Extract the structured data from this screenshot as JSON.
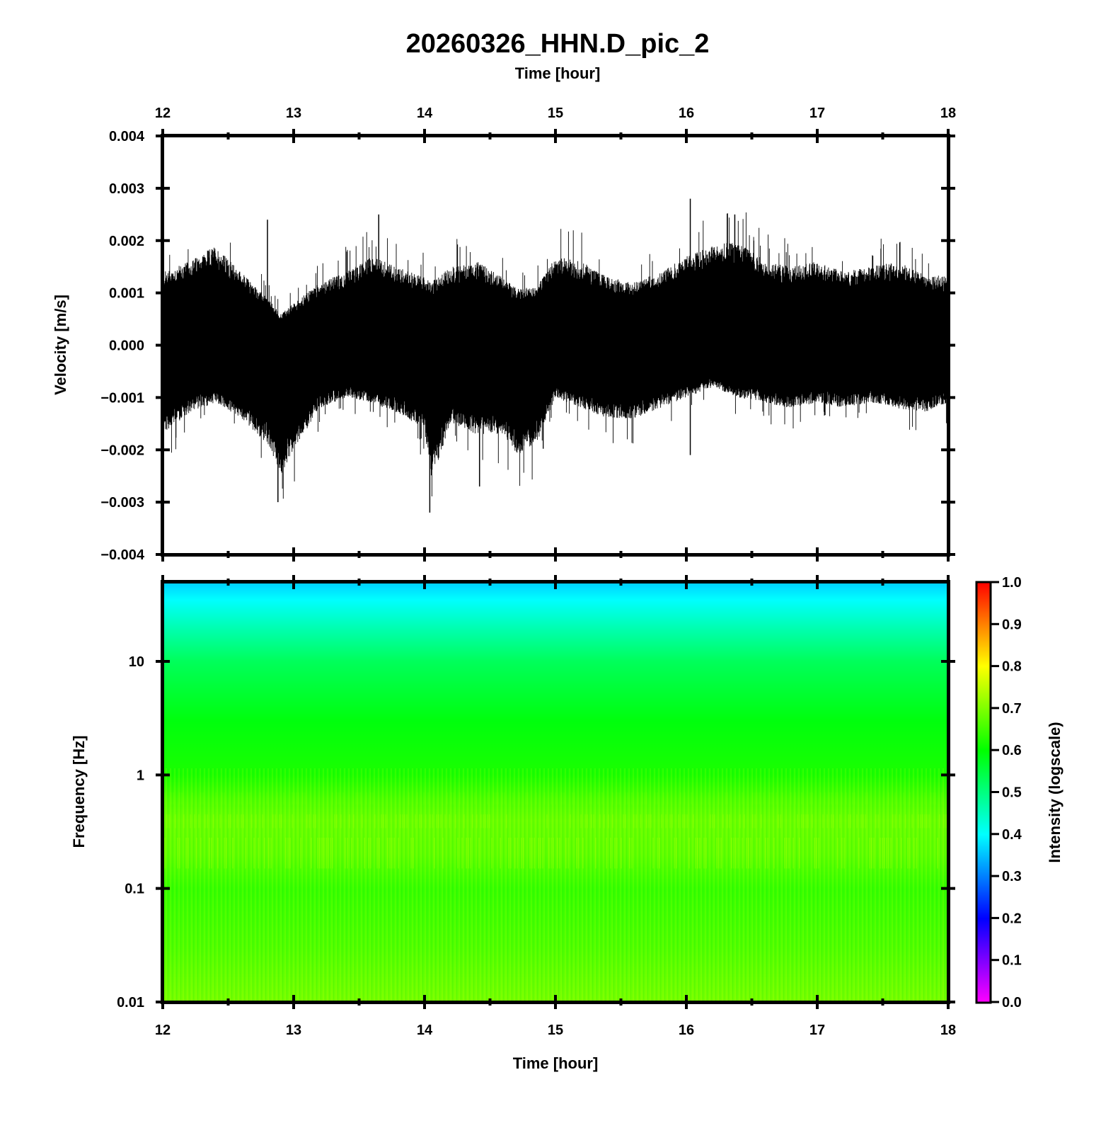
{
  "title": "20260326_HHN.D_pic_2",
  "colors": {
    "waveform": "#000000",
    "colormap": [
      "#ff00ff",
      "#8000ff",
      "#0000ff",
      "#0080ff",
      "#00ffff",
      "#00ff80",
      "#00ff00",
      "#80ff00",
      "#ffff00",
      "#ff8000",
      "#ff0000"
    ]
  },
  "chart_data": [
    {
      "type": "line",
      "name": "waveform",
      "xlabel_top": "Time [hour]",
      "ylabel": "Velocity [m/s]",
      "xlim": [
        12,
        18
      ],
      "ylim": [
        -0.004,
        0.004
      ],
      "x_ticks": [
        "12",
        "13",
        "14",
        "15",
        "16",
        "17",
        "18"
      ],
      "y_ticks": [
        "0.004",
        "0.003",
        "0.002",
        "0.001",
        "0.000",
        "−0.001",
        "−0.002",
        "−0.003",
        "−0.004"
      ],
      "y_tick_values": [
        0.004,
        0.003,
        0.002,
        0.001,
        0.0,
        -0.001,
        -0.002,
        -0.003,
        -0.004
      ],
      "envelope": {
        "x": [
          12.0,
          12.2,
          12.4,
          12.6,
          12.8,
          12.9,
          13.0,
          13.2,
          13.4,
          13.6,
          13.8,
          14.0,
          14.05,
          14.2,
          14.4,
          14.6,
          14.7,
          14.85,
          15.0,
          15.2,
          15.4,
          15.6,
          15.8,
          16.0,
          16.2,
          16.4,
          16.6,
          16.8,
          17.0,
          17.2,
          17.4,
          17.6,
          17.8,
          18.0
        ],
        "upper": [
          0.0014,
          0.0016,
          0.0019,
          0.0014,
          0.0009,
          0.0006,
          0.0008,
          0.0012,
          0.0014,
          0.0017,
          0.0015,
          0.0013,
          0.0012,
          0.0015,
          0.0016,
          0.0013,
          0.0011,
          0.0011,
          0.0017,
          0.0016,
          0.0013,
          0.0012,
          0.0014,
          0.0017,
          0.0019,
          0.002,
          0.0016,
          0.0015,
          0.0016,
          0.0014,
          0.0015,
          0.0016,
          0.0014,
          0.0013
        ],
        "lower": [
          -0.0017,
          -0.0013,
          -0.0011,
          -0.0014,
          -0.0019,
          -0.0025,
          -0.002,
          -0.0012,
          -0.001,
          -0.0011,
          -0.0013,
          -0.0016,
          -0.0026,
          -0.0015,
          -0.0017,
          -0.0017,
          -0.0021,
          -0.0019,
          -0.001,
          -0.0012,
          -0.0014,
          -0.0014,
          -0.0012,
          -0.001,
          -0.0008,
          -0.001,
          -0.0011,
          -0.0012,
          -0.0011,
          -0.0012,
          -0.0011,
          -0.0012,
          -0.0013,
          -0.0011
        ]
      },
      "peaks": [
        {
          "x": 12.8,
          "y": 0.0024
        },
        {
          "x": 13.65,
          "y": 0.0025
        },
        {
          "x": 16.03,
          "y": 0.0028
        },
        {
          "x": 16.37,
          "y": 0.0025
        },
        {
          "x": 12.88,
          "y": -0.003
        },
        {
          "x": 14.04,
          "y": -0.0032
        },
        {
          "x": 14.42,
          "y": -0.0027
        },
        {
          "x": 16.03,
          "y": -0.0021
        }
      ]
    },
    {
      "type": "heatmap",
      "name": "spectrogram",
      "xlabel": "Time [hour]",
      "ylabel": "Frequency [Hz]",
      "xlim": [
        12,
        18
      ],
      "ylim": [
        0.01,
        50
      ],
      "y_scale": "log",
      "x_ticks": [
        "12",
        "13",
        "14",
        "15",
        "16",
        "17",
        "18"
      ],
      "y_ticks": [
        "10",
        "1",
        "0.1",
        "0.01"
      ],
      "y_tick_values": [
        10,
        1,
        0.1,
        0.01
      ],
      "intensity_profile": {
        "frequency": [
          0.01,
          0.03,
          0.1,
          0.2,
          0.4,
          0.6,
          1,
          3,
          10,
          20,
          35,
          50
        ],
        "intensity": [
          0.69,
          0.66,
          0.64,
          0.67,
          0.68,
          0.66,
          0.62,
          0.59,
          0.53,
          0.46,
          0.4,
          0.36
        ]
      },
      "colorbar": {
        "label": "Intensity (logscale)",
        "range": [
          0,
          1
        ],
        "ticks": [
          "1.0",
          "0.9",
          "0.8",
          "0.7",
          "0.6",
          "0.5",
          "0.4",
          "0.3",
          "0.2",
          "0.1",
          "0.0"
        ],
        "tick_values": [
          1.0,
          0.9,
          0.8,
          0.7,
          0.6,
          0.5,
          0.4,
          0.3,
          0.2,
          0.1,
          0.0
        ]
      }
    }
  ]
}
